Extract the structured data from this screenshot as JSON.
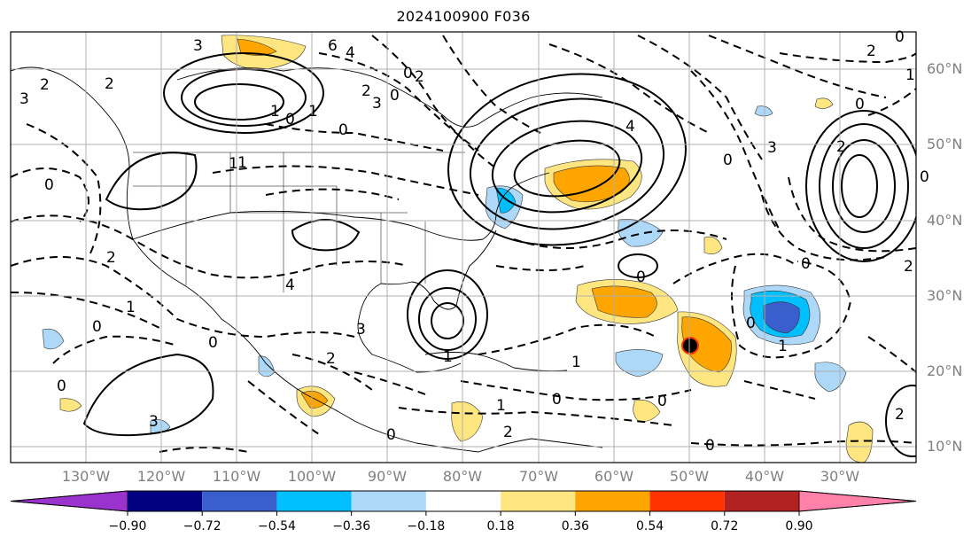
{
  "title": "2024100900 F036",
  "lat_labels": [
    "60°N",
    "50°N",
    "40°N",
    "30°N",
    "20°N",
    "10°N"
  ],
  "lon_labels": [
    "130°W",
    "120°W",
    "110°W",
    "100°W",
    "90°W",
    "80°W",
    "70°W",
    "60°W",
    "50°W",
    "40°W",
    "30°W"
  ],
  "colorbar": {
    "ticks": [
      "−0.90",
      "−0.72",
      "−0.54",
      "−0.36",
      "−0.18",
      "0.18",
      "0.36",
      "0.54",
      "0.72",
      "0.90"
    ],
    "colors": [
      "#9a32cd",
      "#000080",
      "#3a5fcd",
      "#00bfff",
      "#add8f7",
      "#ffffff",
      "#ffe680",
      "#ffa500",
      "#ff3300",
      "#b22222",
      "#ff80a8"
    ]
  },
  "contour_labels": [
    "3",
    "6",
    "4",
    "2",
    "1",
    "0",
    "0",
    "2",
    "3",
    "2",
    "1",
    "1",
    "0",
    "0",
    "3",
    "2",
    "1",
    "0",
    "2",
    "1",
    "0",
    "0",
    "4",
    "3",
    "0",
    "3",
    "2",
    "1",
    "0",
    "4",
    "0",
    "2",
    "0",
    "2",
    "1",
    "0",
    "0",
    "2",
    "1",
    "0",
    "2",
    "0",
    "1",
    "2",
    "3",
    "0",
    "0",
    "1",
    "0",
    "0"
  ],
  "grid": true,
  "projection": "PlateCarree",
  "lat_range": [
    7,
    65
  ],
  "lon_range": [
    -140,
    -20
  ]
}
